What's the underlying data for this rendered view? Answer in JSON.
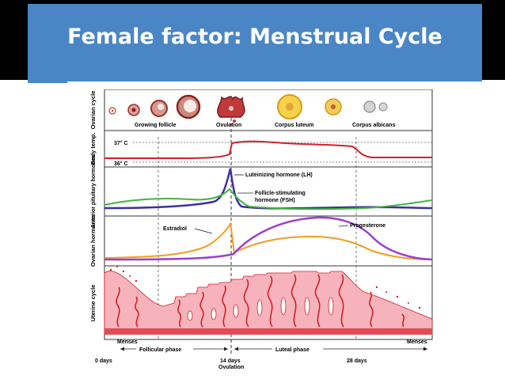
{
  "slide": {
    "title": "Female factor: Menstrual Cycle"
  },
  "colors": {
    "title_bg": "#4a86c5",
    "title_text": "#ffffff",
    "temperature": "#d22027",
    "lh": "#3b2fa6",
    "fsh": "#46b33e",
    "estradiol": "#f39c1f",
    "progesterone": "#9b3fd1",
    "endometrium": "#f6b3bc",
    "vessels": "#d22027"
  },
  "diagram": {
    "rows": {
      "ovarian": "Ovarian cycle",
      "temp": "Body temp.",
      "pituitary": "Anterior pituitary hormones",
      "hormones": "Ovarian hormones",
      "uterine": "Uterine cycle"
    },
    "ovarian_labels": {
      "growing": "Growing follicle",
      "ovulation": "Ovulation",
      "luteum": "Corpus luteum",
      "albicans": "Corpus albicans"
    },
    "temp_labels": {
      "high": "37° C",
      "low": "36° C"
    },
    "pituitary_labels": {
      "lh": "Luteinizing hormone (LH)",
      "fsh_1": "Follicle-stimulating",
      "fsh_2": "hormone (FSH)"
    },
    "hormone_labels": {
      "estradiol": "Estradiol",
      "progesterone": "Progesterone"
    },
    "phase_labels": {
      "menses_left": "Menses",
      "menses_right": "Menses",
      "follicular": "Follicular phase",
      "luteal": "Luteal phase"
    },
    "axis": {
      "day0": "0 days",
      "day14": "14 days",
      "ovulation": "Ovulation",
      "day28": "28 days"
    }
  }
}
